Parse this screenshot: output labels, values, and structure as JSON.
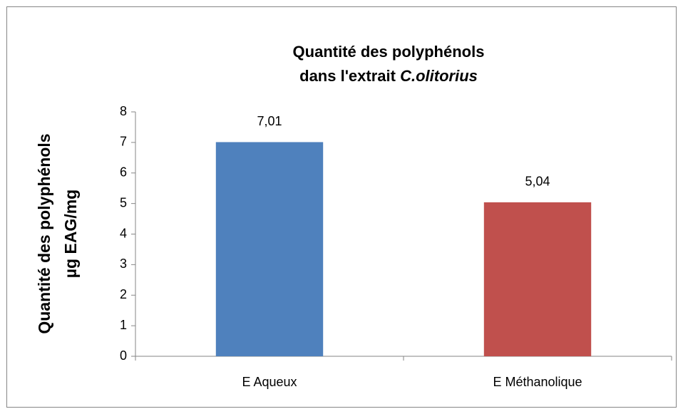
{
  "chart_data": {
    "type": "bar",
    "title": [
      "Quantité des polyphénols",
      "dans l'extrait",
      "C.olitorius"
    ],
    "ylabel": [
      "Quantité des polyphénols",
      "µg EAG/mg"
    ],
    "categories": [
      "E Aqueux",
      "E Méthanolique"
    ],
    "values": [
      7.01,
      5.04
    ],
    "value_labels": [
      "7,01",
      "5,04"
    ],
    "colors": [
      "#4f81bd",
      "#c0504d"
    ],
    "ylim": [
      0,
      8
    ],
    "yticks": [
      0,
      1,
      2,
      3,
      4,
      5,
      6,
      7,
      8
    ],
    "grid": false
  }
}
